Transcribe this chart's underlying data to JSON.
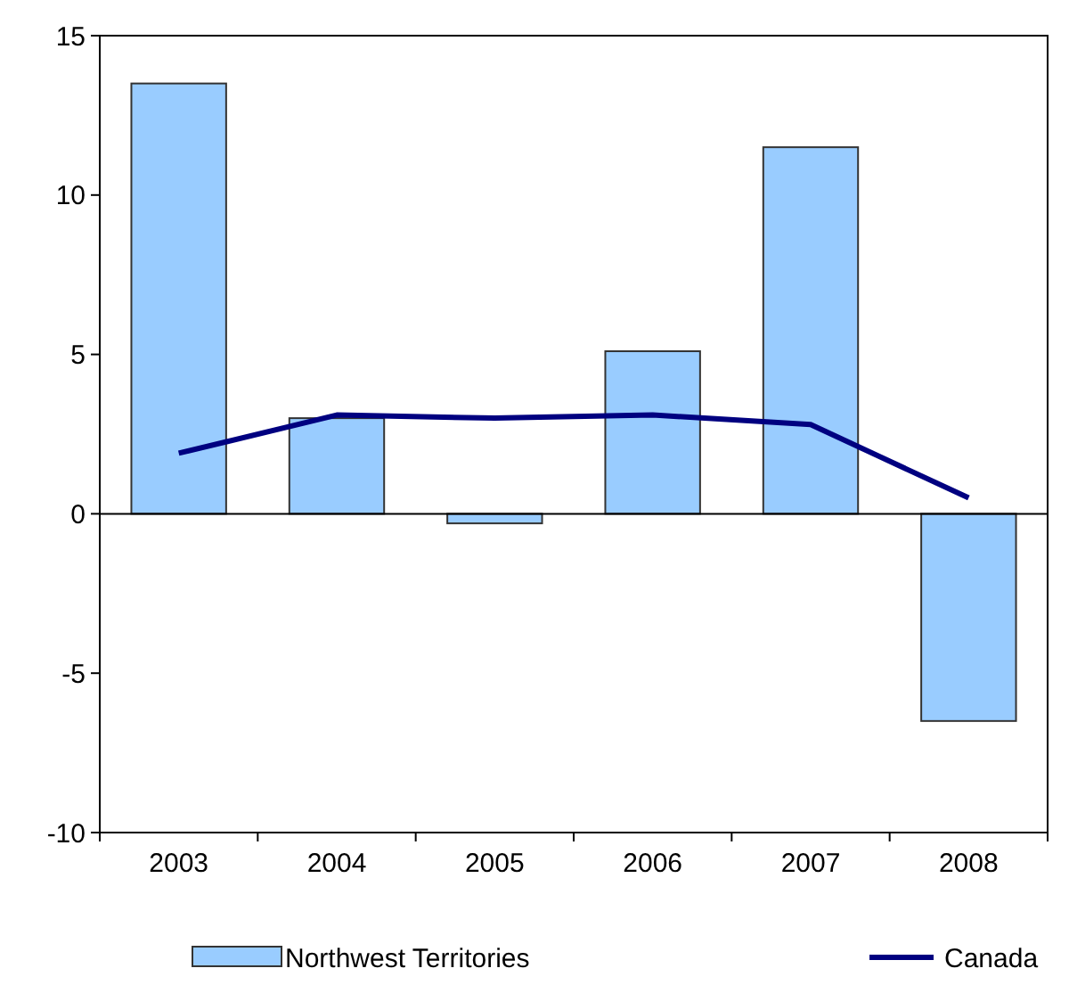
{
  "chart_data": {
    "type": "bar",
    "categories": [
      "2003",
      "2004",
      "2005",
      "2006",
      "2007",
      "2008"
    ],
    "series": [
      {
        "name": "Northwest Territories",
        "color": "#99ccff",
        "values": [
          13.5,
          3.0,
          -0.3,
          5.1,
          11.5,
          -6.5
        ]
      },
      {
        "name": "Canada",
        "type": "line",
        "color": "#000080",
        "values": [
          1.9,
          3.1,
          3.0,
          3.1,
          2.8,
          0.5
        ]
      }
    ],
    "ylim": [
      -10,
      15
    ],
    "yticks": [
      -10,
      -5,
      0,
      5,
      10,
      15
    ],
    "legend": "bottom"
  }
}
